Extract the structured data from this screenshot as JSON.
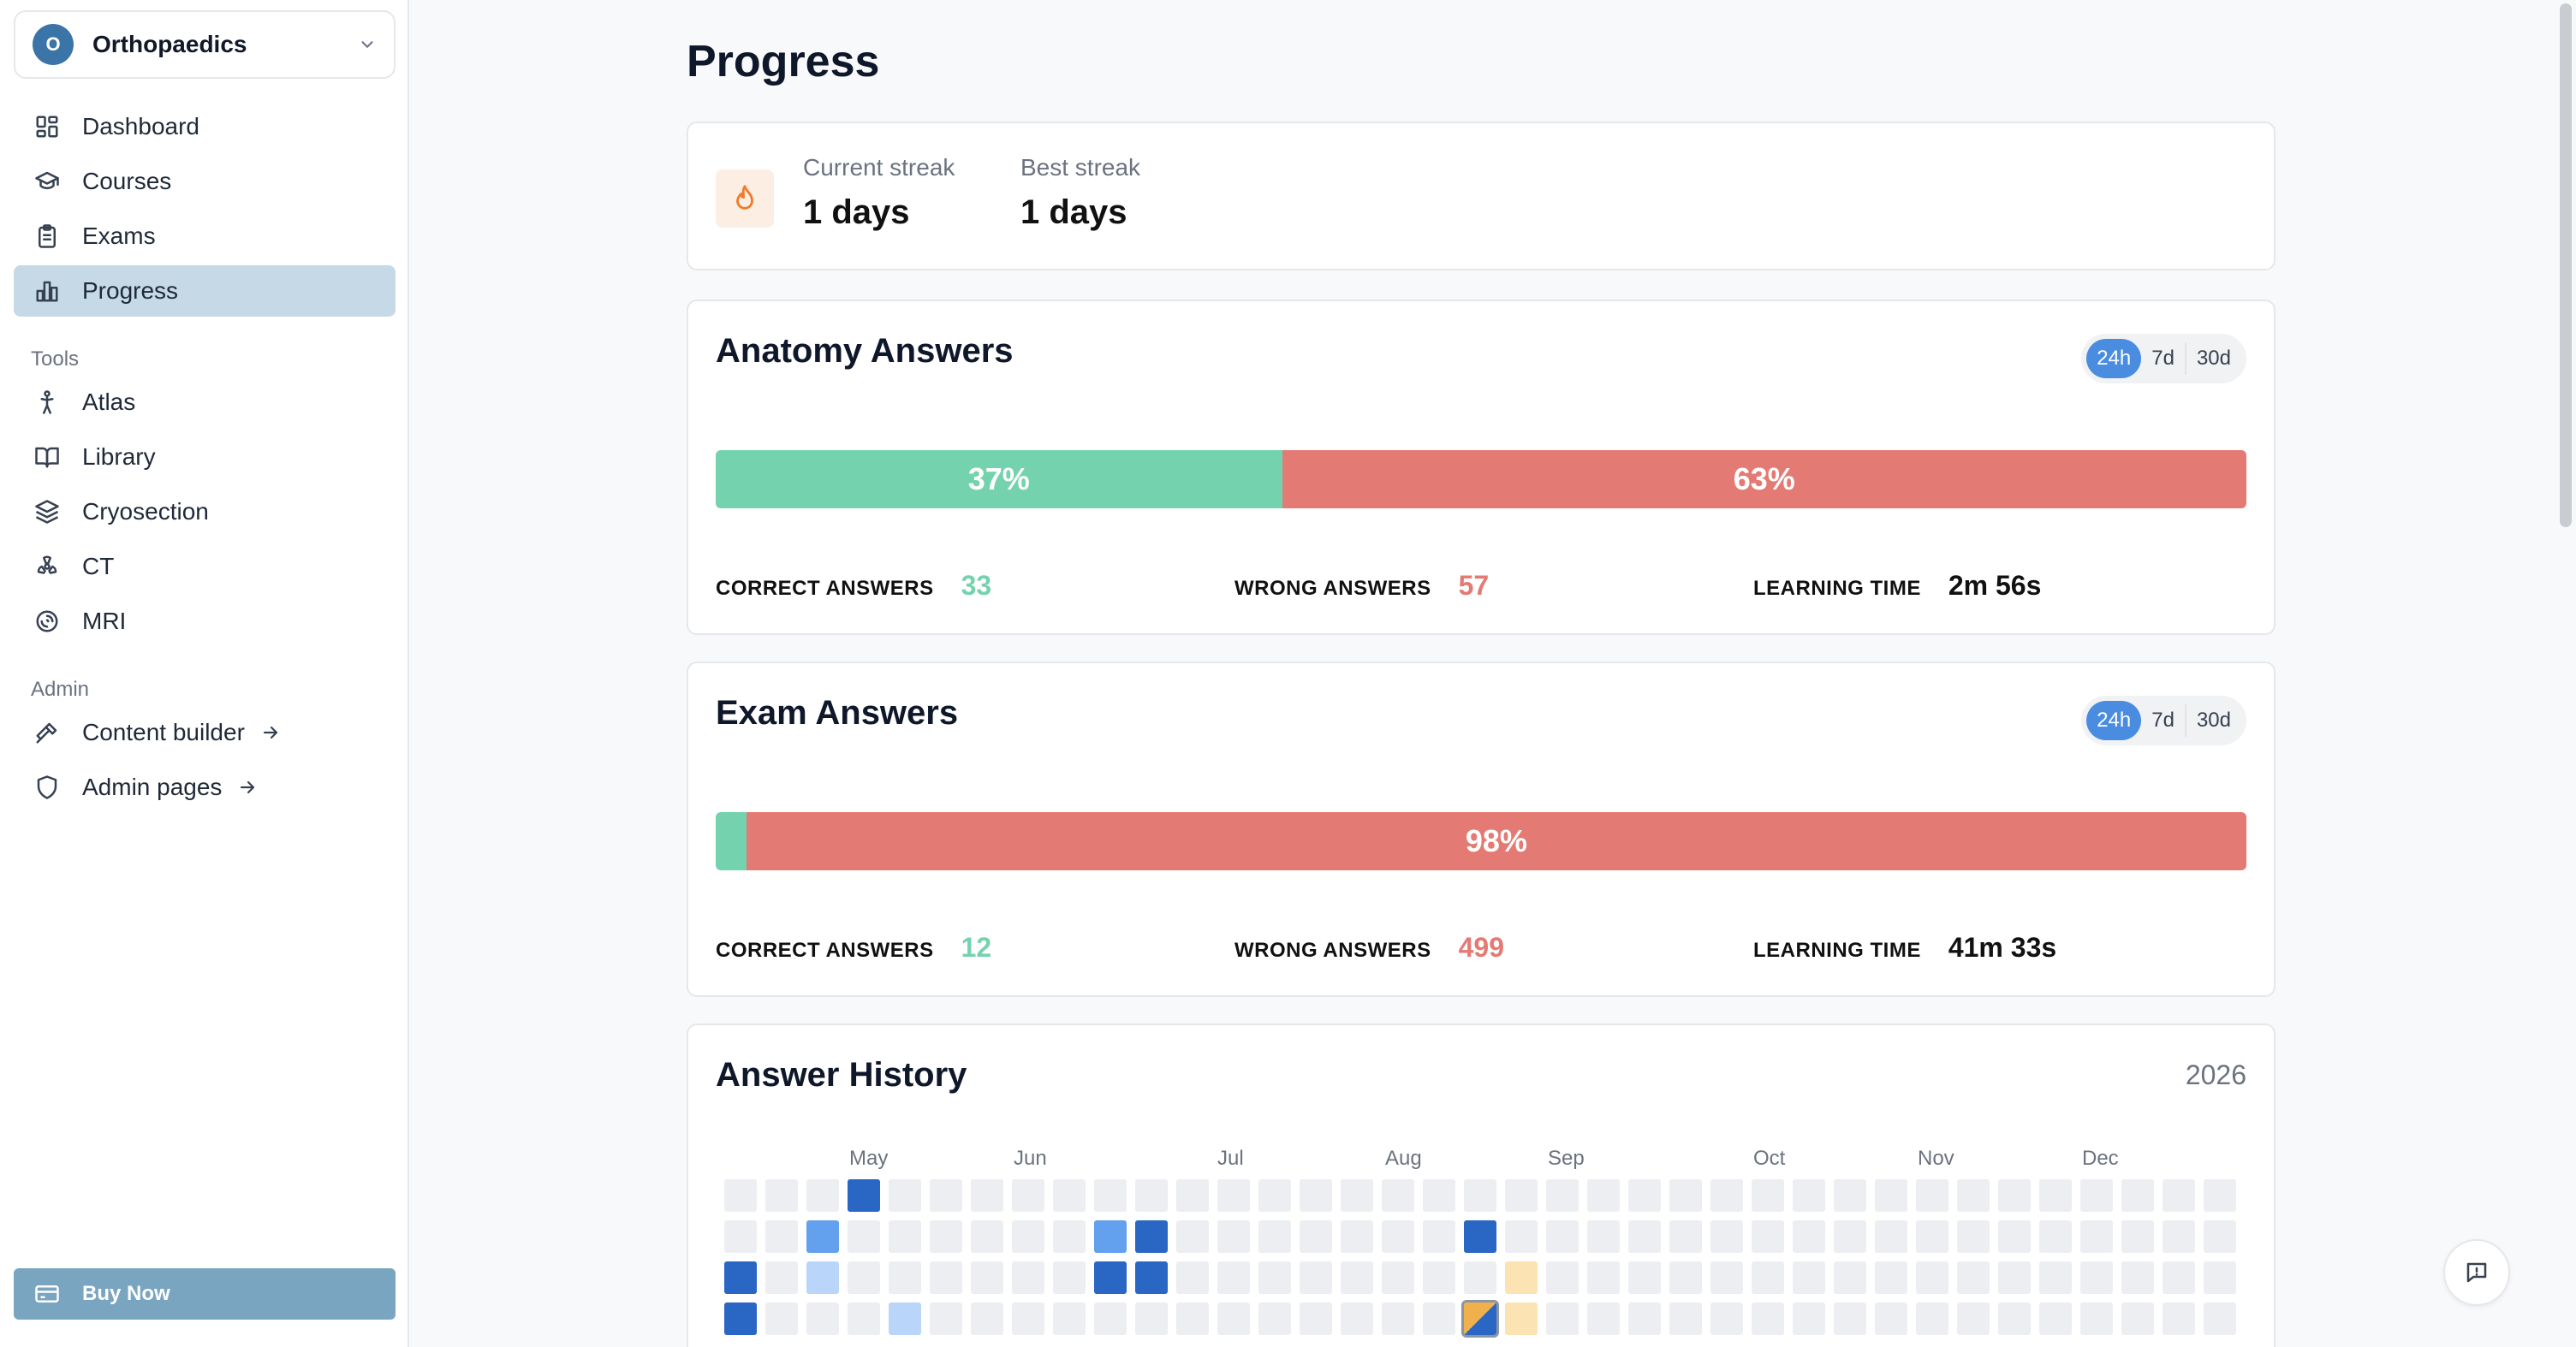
{
  "sidebar": {
    "org": {
      "initial": "O",
      "name": "Orthopaedics"
    },
    "nav": [
      {
        "label": "Dashboard",
        "icon": "dashboard-icon"
      },
      {
        "label": "Courses",
        "icon": "graduation-cap-icon"
      },
      {
        "label": "Exams",
        "icon": "clipboard-icon"
      },
      {
        "label": "Progress",
        "icon": "bar-chart-icon",
        "active": true
      }
    ],
    "tools_label": "Tools",
    "tools": [
      {
        "label": "Atlas",
        "icon": "person-icon"
      },
      {
        "label": "Library",
        "icon": "book-icon"
      },
      {
        "label": "Cryosection",
        "icon": "layers-icon"
      },
      {
        "label": "CT",
        "icon": "radiation-icon"
      },
      {
        "label": "MRI",
        "icon": "magnet-icon"
      }
    ],
    "admin_label": "Admin",
    "admin": [
      {
        "label": "Content builder",
        "icon": "hammer-icon"
      },
      {
        "label": "Admin pages",
        "icon": "shield-icon"
      }
    ],
    "buy_label": "Buy Now"
  },
  "main": {
    "title": "Progress",
    "streak": {
      "current_label": "Current streak",
      "current_value": "1 days",
      "best_label": "Best streak",
      "best_value": "1 days"
    },
    "anatomy": {
      "title": "Anatomy Answers",
      "ranges": [
        "24h",
        "7d",
        "30d"
      ],
      "active_range": "24h",
      "correct_pct": 37,
      "correct_pct_label": "37%",
      "wrong_pct_label": "63%",
      "correct_label": "CORRECT ANSWERS",
      "correct_value": "33",
      "wrong_label": "WRONG ANSWERS",
      "wrong_value": "57",
      "time_label": "LEARNING TIME",
      "time_value": "2m 56s"
    },
    "exam": {
      "title": "Exam Answers",
      "ranges": [
        "24h",
        "7d",
        "30d"
      ],
      "active_range": "24h",
      "correct_pct": 2,
      "correct_pct_label": "",
      "wrong_pct_label": "98%",
      "correct_label": "CORRECT ANSWERS",
      "correct_value": "12",
      "wrong_label": "WRONG ANSWERS",
      "wrong_value": "499",
      "time_label": "LEARNING TIME",
      "time_value": "41m 33s"
    },
    "history": {
      "title": "Answer History",
      "year": "2026",
      "months": [
        "May",
        "Jun",
        "Jul",
        "Aug",
        "Sep",
        "Oct",
        "Nov",
        "Dec"
      ],
      "weeks": 37,
      "levels": [
        [
          0,
          0,
          0,
          3,
          0,
          0,
          0,
          0,
          0,
          0,
          0,
          0,
          0,
          0,
          0,
          0,
          0,
          0,
          0,
          0,
          0,
          0,
          0,
          0,
          0,
          0,
          0,
          0,
          0,
          0,
          0,
          0,
          0,
          0,
          0,
          0,
          0
        ],
        [
          0,
          0,
          2,
          0,
          0,
          0,
          0,
          0,
          0,
          2,
          3,
          0,
          0,
          0,
          0,
          0,
          0,
          0,
          3,
          0,
          0,
          0,
          0,
          0,
          0,
          0,
          0,
          0,
          0,
          0,
          0,
          0,
          0,
          0,
          0,
          0,
          0
        ],
        [
          3,
          0,
          1,
          0,
          0,
          0,
          0,
          0,
          0,
          3,
          3,
          0,
          0,
          0,
          0,
          0,
          0,
          0,
          0,
          "w",
          0,
          0,
          0,
          0,
          0,
          0,
          0,
          0,
          0,
          0,
          0,
          0,
          0,
          0,
          0,
          0,
          0
        ],
        [
          3,
          0,
          0,
          0,
          1,
          0,
          0,
          0,
          0,
          0,
          0,
          0,
          0,
          0,
          0,
          0,
          0,
          0,
          "m",
          "w",
          0,
          0,
          0,
          0,
          0,
          0,
          0,
          0,
          0,
          0,
          0,
          0,
          0,
          0,
          0,
          0,
          0
        ]
      ]
    },
    "feedback_icon": "message-alert-icon"
  }
}
